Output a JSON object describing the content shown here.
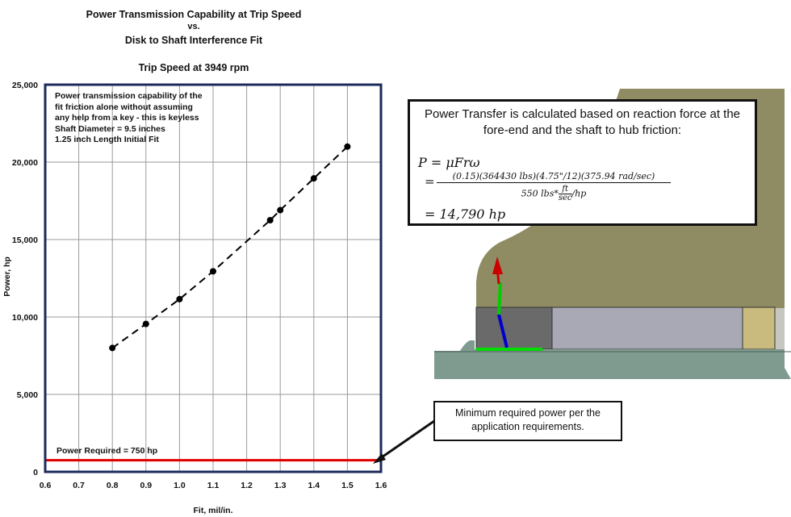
{
  "chart_data": {
    "type": "scatter",
    "title_lines": [
      "Power Transmission Capability at Trip Speed",
      "vs.",
      "Disk to Shaft Interference Fit"
    ],
    "subtitle": "Trip Speed at 3949 rpm",
    "xlabel": "Fit, mil/in.",
    "ylabel": "Power, hp",
    "xlim": [
      0.6,
      1.6
    ],
    "ylim": [
      0,
      25000
    ],
    "x_ticks": [
      "0.6",
      "0.7",
      "0.8",
      "0.9",
      "1.0",
      "1.1",
      "1.2",
      "1.3",
      "1.4",
      "1.5",
      "1.6"
    ],
    "y_ticks": [
      "0",
      "5,000",
      "10,000",
      "15,000",
      "20,000",
      "25,000"
    ],
    "grid": true,
    "series": [
      {
        "x": [
          0.8,
          0.9,
          1.0,
          1.1,
          1.27,
          1.3,
          1.4,
          1.5
        ],
        "y": [
          8000,
          9550,
          11150,
          12950,
          16250,
          16900,
          18950,
          21000
        ],
        "line_style": "dashed",
        "color": "#000000"
      }
    ],
    "reference_line": {
      "y": 750,
      "label": "Power Required = 750 hp",
      "color": "#e00000"
    },
    "annotation_lines": [
      "Power transmission capability of the",
      "fit friction alone without assuming",
      "any help from  a key - this is keyless",
      "Shaft Diameter = 9.5 inches",
      "1.25 inch Length Initial Fit"
    ]
  },
  "callout_formula": {
    "description": "Power Transfer is calculated based on reaction force at the fore-end and the shaft to hub friction:",
    "line1": "P = μFrω",
    "numerator": "(0.15)(364430 lbs)(4.75\"/12)(375.94 rad/sec)",
    "denominator_prefix": "550 lbs*",
    "frac_num": "ft",
    "frac_den": "sec",
    "denominator_suffix": "/hp",
    "result": "= 14,790 hp"
  },
  "callout_min": {
    "text": "Minimum required power per the application requirements."
  },
  "colors": {
    "frame": "#1b2a5a",
    "required_line": "#e00000",
    "cad_housing": "#8f8c63",
    "cad_shaft": "#7f9b8f",
    "arrow_red": "#cc0000",
    "arrow_green": "#00cc00",
    "arrow_blue": "#0000cc"
  }
}
